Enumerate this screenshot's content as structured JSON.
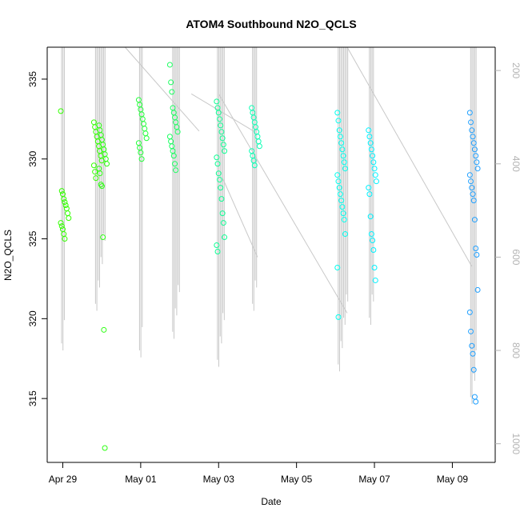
{
  "chart_data": {
    "type": "scatter",
    "title": "ATOM4 Southbound N2O_QCLS",
    "xlabel": "Date",
    "ylabel": "N2O_QCLS",
    "x_tick_labels": [
      "Apr 29",
      "May 01",
      "May 03",
      "May 05",
      "May 07",
      "May 09"
    ],
    "x_ticks_days": [
      0,
      2,
      4,
      6,
      8,
      10
    ],
    "xlim_days": [
      -0.4,
      11.1
    ],
    "ylim": [
      311.0,
      337.0
    ],
    "y_ticks": [
      315,
      320,
      325,
      330,
      335
    ],
    "y_tick_labels": [
      "315",
      "320",
      "325",
      "330",
      "335"
    ],
    "secondary_axis": {
      "label_values": [
        "200",
        "400",
        "600",
        "800",
        "1000"
      ],
      "values": [
        200,
        400,
        600,
        800,
        1000
      ],
      "lim_top": 150,
      "lim_bottom": 1040,
      "reversed": true,
      "color": "#b3b3b3"
    },
    "series": [
      {
        "color": "#33ff00",
        "cx": 0.05,
        "cols": [
          [
            333.0,
            328.0,
            327.8,
            327.5,
            327.3,
            327.1,
            326.9,
            326.6,
            326.3,
            326.0,
            325.8,
            325.6,
            325.3,
            325.0
          ]
        ],
        "extra": []
      },
      {
        "color": "#33ff00",
        "cx": 0.9,
        "cols": [
          [
            332.3,
            332.0,
            331.7,
            331.4,
            331.1,
            330.8,
            330.5,
            330.2,
            329.9,
            329.6,
            329.2,
            328.8
          ]
        ],
        "extra": []
      },
      {
        "color": "#2cff11",
        "cx": 1.03,
        "cols": [
          [
            332.1,
            331.8,
            331.5,
            331.2,
            330.9,
            330.6,
            330.3,
            330.0,
            329.7,
            329.4,
            329.1,
            328.4,
            328.3,
            325.1,
            319.3,
            311.9
          ]
        ],
        "extra": []
      },
      {
        "color": "#23ff3a",
        "cx": 2.05,
        "cols": [
          [
            333.7,
            333.4,
            333.1,
            332.8,
            332.5,
            332.2,
            331.9,
            331.6,
            331.3,
            331.0,
            330.7,
            330.4,
            330.0
          ]
        ],
        "extra": []
      },
      {
        "color": "#1aff60",
        "cx": 2.85,
        "cols": [
          [
            335.9,
            334.8,
            334.2,
            333.2,
            332.9,
            332.6,
            332.3,
            332.0,
            331.7,
            331.4,
            331.1,
            330.8,
            330.5,
            330.2,
            329.7,
            329.3
          ]
        ],
        "extra": []
      },
      {
        "color": "#0fff95",
        "cx": 4.05,
        "cols": [
          [
            333.6,
            333.2,
            332.9,
            332.5,
            332.1,
            331.7,
            331.3,
            330.9,
            330.5,
            330.1,
            329.7,
            329.1,
            328.7,
            328.2,
            327.5,
            326.6,
            326.0,
            325.1,
            324.6,
            324.2
          ]
        ],
        "extra": []
      },
      {
        "color": "#0cffb5",
        "cx": 4.95,
        "cols": [
          [
            333.2,
            332.9,
            332.6,
            332.3,
            332.0,
            331.7,
            331.4,
            331.1,
            330.8,
            330.5,
            330.2,
            329.9,
            329.6
          ]
        ],
        "extra": []
      },
      {
        "color": "#00ffee",
        "cx": 7.15,
        "cols": [
          [
            332.9,
            332.4,
            331.8,
            331.4,
            331.0,
            330.6,
            330.2,
            329.8,
            329.4,
            329.0,
            328.6,
            328.2,
            327.8,
            327.4,
            327.0,
            326.6,
            326.2,
            325.3,
            323.2,
            320.1
          ]
        ],
        "extra": []
      },
      {
        "color": "#00f2ff",
        "cx": 7.95,
        "cols": [
          [
            331.8,
            331.4,
            331.0,
            330.6,
            330.2,
            329.8,
            329.4,
            329.0,
            328.6,
            328.2,
            327.8,
            326.4,
            325.3,
            324.9,
            324.3,
            323.2,
            322.4
          ]
        ],
        "extra": []
      },
      {
        "color": "#20a0ff",
        "cx": 10.55,
        "cols": [
          [
            332.9,
            332.3,
            331.8,
            331.4,
            331.0,
            330.6,
            330.2,
            329.8,
            329.4,
            329.0,
            328.6,
            328.2,
            327.8,
            327.4,
            326.2,
            324.4,
            324.0,
            321.8,
            320.4,
            319.2,
            318.3,
            317.8,
            316.8,
            315.1,
            314.8
          ]
        ],
        "extra": []
      }
    ]
  }
}
